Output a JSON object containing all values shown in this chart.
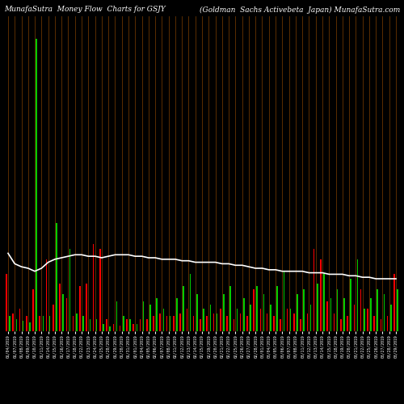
{
  "title_left": "MunafaSutra  Money Flow  Charts for GSJY",
  "title_right": "(Goldman  Sachs Activebeta  Japan) MunafaSutra.com",
  "background_color": "#000000",
  "line_color": "#ffffff",
  "separator_color": "#8B4500",
  "bar_data": [
    {
      "label": "01/04/2019",
      "red": 0.38,
      "green": 0.1
    },
    {
      "label": "01/07/2019",
      "red": 0.12,
      "green": 0.08
    },
    {
      "label": "01/08/2019",
      "red": 0.15,
      "green": 0.07
    },
    {
      "label": "01/09/2019",
      "red": 0.1,
      "green": 0.06
    },
    {
      "label": "01/10/2019",
      "red": 0.28,
      "green": 1.95
    },
    {
      "label": "01/11/2019",
      "red": 0.1,
      "green": 0.1
    },
    {
      "label": "01/14/2019",
      "red": 0.48,
      "green": 0.1
    },
    {
      "label": "01/15/2019",
      "red": 0.18,
      "green": 0.72
    },
    {
      "label": "01/16/2019",
      "red": 0.32,
      "green": 0.25
    },
    {
      "label": "01/17/2019",
      "red": 0.22,
      "green": 0.55
    },
    {
      "label": "01/18/2019",
      "red": 0.1,
      "green": 0.12
    },
    {
      "label": "01/22/2019",
      "red": 0.3,
      "green": 0.1
    },
    {
      "label": "01/23/2019",
      "red": 0.32,
      "green": 0.08
    },
    {
      "label": "01/24/2019",
      "red": 0.58,
      "green": 0.08
    },
    {
      "label": "01/25/2019",
      "red": 0.55,
      "green": 0.05
    },
    {
      "label": "01/28/2019",
      "red": 0.08,
      "green": 0.03
    },
    {
      "label": "01/29/2019",
      "red": 0.05,
      "green": 0.2
    },
    {
      "label": "01/30/2019",
      "red": 0.04,
      "green": 0.1
    },
    {
      "label": "01/31/2019",
      "red": 0.08,
      "green": 0.08
    },
    {
      "label": "02/01/2019",
      "red": 0.05,
      "green": 0.05
    },
    {
      "label": "02/04/2019",
      "red": 0.08,
      "green": 0.2
    },
    {
      "label": "02/05/2019",
      "red": 0.08,
      "green": 0.18
    },
    {
      "label": "02/06/2019",
      "red": 0.1,
      "green": 0.22
    },
    {
      "label": "02/07/2019",
      "red": 0.12,
      "green": 0.15
    },
    {
      "label": "02/08/2019",
      "red": 0.1,
      "green": 0.1
    },
    {
      "label": "02/11/2019",
      "red": 0.1,
      "green": 0.22
    },
    {
      "label": "02/12/2019",
      "red": 0.12,
      "green": 0.3
    },
    {
      "label": "02/13/2019",
      "red": 0.15,
      "green": 0.38
    },
    {
      "label": "02/14/2019",
      "red": 0.1,
      "green": 0.25
    },
    {
      "label": "02/15/2019",
      "red": 0.08,
      "green": 0.15
    },
    {
      "label": "02/19/2019",
      "red": 0.1,
      "green": 0.18
    },
    {
      "label": "02/20/2019",
      "red": 0.12,
      "green": 0.12
    },
    {
      "label": "02/21/2019",
      "red": 0.15,
      "green": 0.25
    },
    {
      "label": "02/22/2019",
      "red": 0.1,
      "green": 0.3
    },
    {
      "label": "02/25/2019",
      "red": 0.08,
      "green": 0.15
    },
    {
      "label": "02/26/2019",
      "red": 0.12,
      "green": 0.22
    },
    {
      "label": "02/27/2019",
      "red": 0.1,
      "green": 0.18
    },
    {
      "label": "02/28/2019",
      "red": 0.28,
      "green": 0.3
    },
    {
      "label": "03/01/2019",
      "red": 0.15,
      "green": 0.25
    },
    {
      "label": "03/04/2019",
      "red": 0.12,
      "green": 0.18
    },
    {
      "label": "03/05/2019",
      "red": 0.1,
      "green": 0.3
    },
    {
      "label": "03/06/2019",
      "red": 0.08,
      "green": 0.4
    },
    {
      "label": "03/07/2019",
      "red": 0.15,
      "green": 0.15
    },
    {
      "label": "03/08/2019",
      "red": 0.12,
      "green": 0.25
    },
    {
      "label": "03/11/2019",
      "red": 0.08,
      "green": 0.28
    },
    {
      "label": "03/12/2019",
      "red": 0.12,
      "green": 0.18
    },
    {
      "label": "03/13/2019",
      "red": 0.55,
      "green": 0.32
    },
    {
      "label": "03/14/2019",
      "red": 0.48,
      "green": 0.38
    },
    {
      "label": "03/15/2019",
      "red": 0.2,
      "green": 0.22
    },
    {
      "label": "03/18/2019",
      "red": 0.12,
      "green": 0.28
    },
    {
      "label": "03/19/2019",
      "red": 0.08,
      "green": 0.22
    },
    {
      "label": "03/20/2019",
      "red": 0.1,
      "green": 0.35
    },
    {
      "label": "03/21/2019",
      "red": 0.18,
      "green": 0.48
    },
    {
      "label": "03/22/2019",
      "red": 0.28,
      "green": 0.15
    },
    {
      "label": "03/25/2019",
      "red": 0.15,
      "green": 0.22
    },
    {
      "label": "03/26/2019",
      "red": 0.1,
      "green": 0.28
    },
    {
      "label": "03/27/2019",
      "red": 0.08,
      "green": 0.25
    },
    {
      "label": "03/28/2019",
      "red": 0.1,
      "green": 0.18
    },
    {
      "label": "03/29/2019",
      "red": 0.38,
      "green": 0.28
    }
  ],
  "line_values": [
    0.52,
    0.45,
    0.43,
    0.42,
    0.4,
    0.42,
    0.46,
    0.48,
    0.49,
    0.5,
    0.51,
    0.51,
    0.5,
    0.5,
    0.49,
    0.5,
    0.51,
    0.51,
    0.51,
    0.5,
    0.5,
    0.49,
    0.49,
    0.48,
    0.48,
    0.48,
    0.47,
    0.47,
    0.46,
    0.46,
    0.46,
    0.46,
    0.45,
    0.45,
    0.44,
    0.44,
    0.43,
    0.42,
    0.42,
    0.41,
    0.41,
    0.4,
    0.4,
    0.4,
    0.4,
    0.39,
    0.39,
    0.39,
    0.38,
    0.38,
    0.38,
    0.37,
    0.37,
    0.36,
    0.36,
    0.35,
    0.35,
    0.35,
    0.35
  ],
  "ylim": [
    0,
    2.1
  ],
  "tick_fontsize": 3.5,
  "title_fontsize": 6.5
}
